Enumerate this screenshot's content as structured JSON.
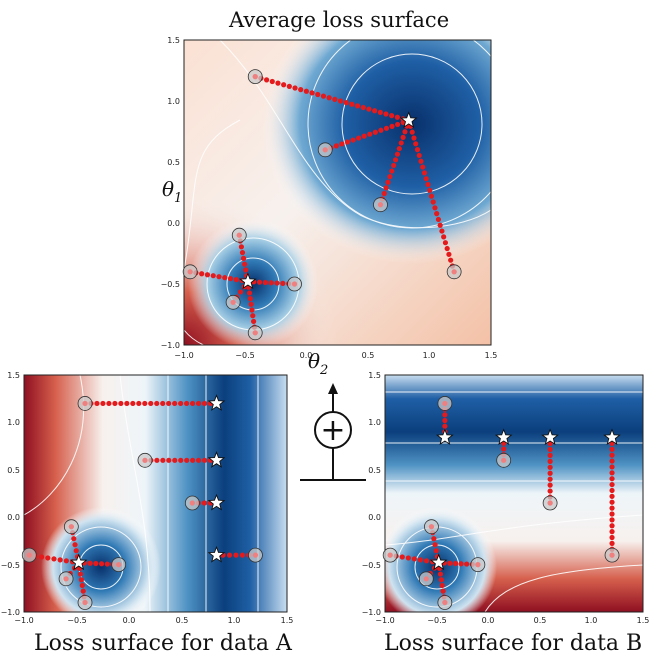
{
  "titles": {
    "top": "Average loss surface",
    "a": "Loss surface for data A",
    "b": "Loss surface for data B"
  },
  "axes": {
    "theta1_main": "θ",
    "theta1_sub": "1",
    "theta2_main": "θ",
    "theta2_sub": "2"
  },
  "ticks": {
    "x": [
      "−1.0",
      "−0.5",
      "0.0",
      "0.5",
      "1.0",
      "1.5"
    ],
    "y": [
      "−1.0",
      "−0.5",
      "0.0",
      "0.5",
      "1.0",
      "1.5"
    ]
  },
  "combine_symbol": "+",
  "colors": {
    "blue_deep": "#08306b",
    "blue": "#2166ac",
    "blue_light": "#92c5de",
    "white": "#f7f7f7",
    "red_light": "#f4a582",
    "red": "#d6604d",
    "red_deep": "#67001f",
    "path": "#e41a1c"
  },
  "diagram": {
    "top": {
      "minima": [
        [
          0.83,
          0.84
        ],
        [
          -0.48,
          -0.48
        ]
      ],
      "paths": [
        {
          "from": [
            -0.42,
            1.2
          ],
          "to": [
            0.83,
            0.84
          ]
        },
        {
          "from": [
            0.15,
            0.6
          ],
          "to": [
            0.83,
            0.84
          ]
        },
        {
          "from": [
            0.6,
            0.15
          ],
          "to": [
            0.83,
            0.84
          ]
        },
        {
          "from": [
            1.2,
            -0.4
          ],
          "to": [
            0.83,
            0.84
          ]
        },
        {
          "from": [
            -0.55,
            -0.1
          ],
          "to": [
            -0.48,
            -0.48
          ]
        },
        {
          "from": [
            -0.95,
            -0.4
          ],
          "to": [
            -0.48,
            -0.48
          ]
        },
        {
          "from": [
            -0.1,
            -0.5
          ],
          "to": [
            -0.48,
            -0.48
          ]
        },
        {
          "from": [
            -0.6,
            -0.65
          ],
          "to": [
            -0.48,
            -0.48
          ]
        },
        {
          "from": [
            -0.42,
            -0.9
          ],
          "to": [
            -0.48,
            -0.48
          ]
        }
      ]
    },
    "a": {
      "paths": [
        {
          "from": [
            -0.42,
            1.2
          ],
          "to": [
            0.83,
            1.2
          ]
        },
        {
          "from": [
            0.15,
            0.6
          ],
          "to": [
            0.83,
            0.6
          ]
        },
        {
          "from": [
            0.6,
            0.15
          ],
          "to": [
            0.83,
            0.15
          ]
        },
        {
          "from": [
            1.2,
            -0.4
          ],
          "to": [
            0.83,
            -0.4
          ]
        },
        {
          "from": [
            -0.55,
            -0.1
          ],
          "to": [
            -0.48,
            -0.48
          ]
        },
        {
          "from": [
            -0.95,
            -0.4
          ],
          "to": [
            -0.48,
            -0.48
          ]
        },
        {
          "from": [
            -0.1,
            -0.5
          ],
          "to": [
            -0.48,
            -0.48
          ]
        },
        {
          "from": [
            -0.6,
            -0.65
          ],
          "to": [
            -0.48,
            -0.48
          ]
        },
        {
          "from": [
            -0.42,
            -0.9
          ],
          "to": [
            -0.48,
            -0.48
          ]
        }
      ]
    },
    "b": {
      "paths": [
        {
          "from": [
            -0.42,
            1.2
          ],
          "to": [
            -0.42,
            0.84
          ]
        },
        {
          "from": [
            0.15,
            0.6
          ],
          "to": [
            0.15,
            0.84
          ]
        },
        {
          "from": [
            0.6,
            0.15
          ],
          "to": [
            0.6,
            0.84
          ]
        },
        {
          "from": [
            1.2,
            -0.4
          ],
          "to": [
            1.2,
            0.84
          ]
        },
        {
          "from": [
            -0.55,
            -0.1
          ],
          "to": [
            -0.48,
            -0.48
          ]
        },
        {
          "from": [
            -0.95,
            -0.4
          ],
          "to": [
            -0.48,
            -0.48
          ]
        },
        {
          "from": [
            -0.1,
            -0.5
          ],
          "to": [
            -0.48,
            -0.48
          ]
        },
        {
          "from": [
            -0.6,
            -0.65
          ],
          "to": [
            -0.48,
            -0.48
          ]
        },
        {
          "from": [
            -0.42,
            -0.9
          ],
          "to": [
            -0.48,
            -0.48
          ]
        }
      ]
    }
  }
}
